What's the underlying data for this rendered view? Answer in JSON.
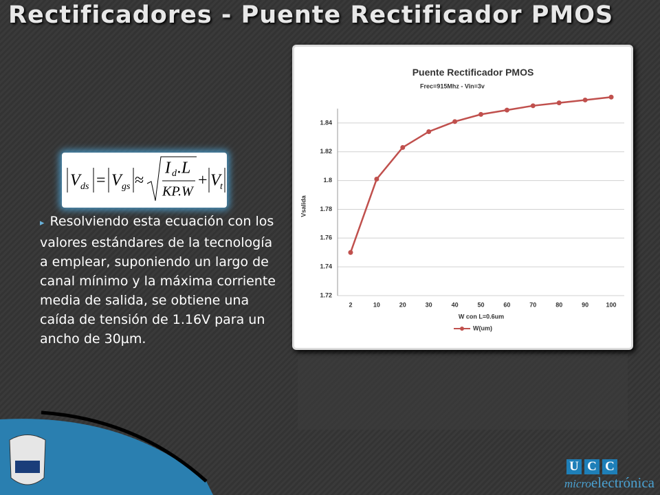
{
  "title": "Rectificadores - Puente Rectificador PMOS",
  "formula": {
    "v1": "V",
    "s1": "ds",
    "eq": "=",
    "v2": "V",
    "s2": "gs",
    "approx": "≈",
    "num": "I",
    "num_sub": "d",
    "num_rest": ".L",
    "den": "KP.W",
    "plus": "+",
    "v3": "V",
    "s3": "t"
  },
  "bullet": "Resolviendo esta ecuación con los valores estándares de la tecnología a emplear, suponiendo un largo de canal mínimo y la máxima corriente media de salida, se obtiene una caída de tensión de 1.16V para un ancho de 30µm.",
  "chart_data": {
    "type": "line",
    "title": "Puente Rectificador PMOS",
    "subtitle": "Frec=915Mhz - Vin=3v",
    "x_label": "W con L=0.6um",
    "y_label": "Vsalida",
    "categories": [
      "2",
      "10",
      "20",
      "30",
      "40",
      "50",
      "60",
      "70",
      "80",
      "90",
      "100"
    ],
    "series": [
      {
        "name": "W(um)",
        "color": "#c0504d",
        "values": [
          1.75,
          1.801,
          1.823,
          1.834,
          1.841,
          1.846,
          1.849,
          1.852,
          1.854,
          1.856,
          1.858
        ]
      }
    ],
    "ylim": [
      1.72,
      1.85
    ],
    "yticks": [
      1.72,
      1.74,
      1.76,
      1.78,
      1.8,
      1.82,
      1.84
    ],
    "grid": true,
    "legend": "bottom"
  },
  "logo": {
    "letters": [
      "U",
      "C",
      "C"
    ],
    "micro": "micro",
    "text": "electrónica"
  }
}
